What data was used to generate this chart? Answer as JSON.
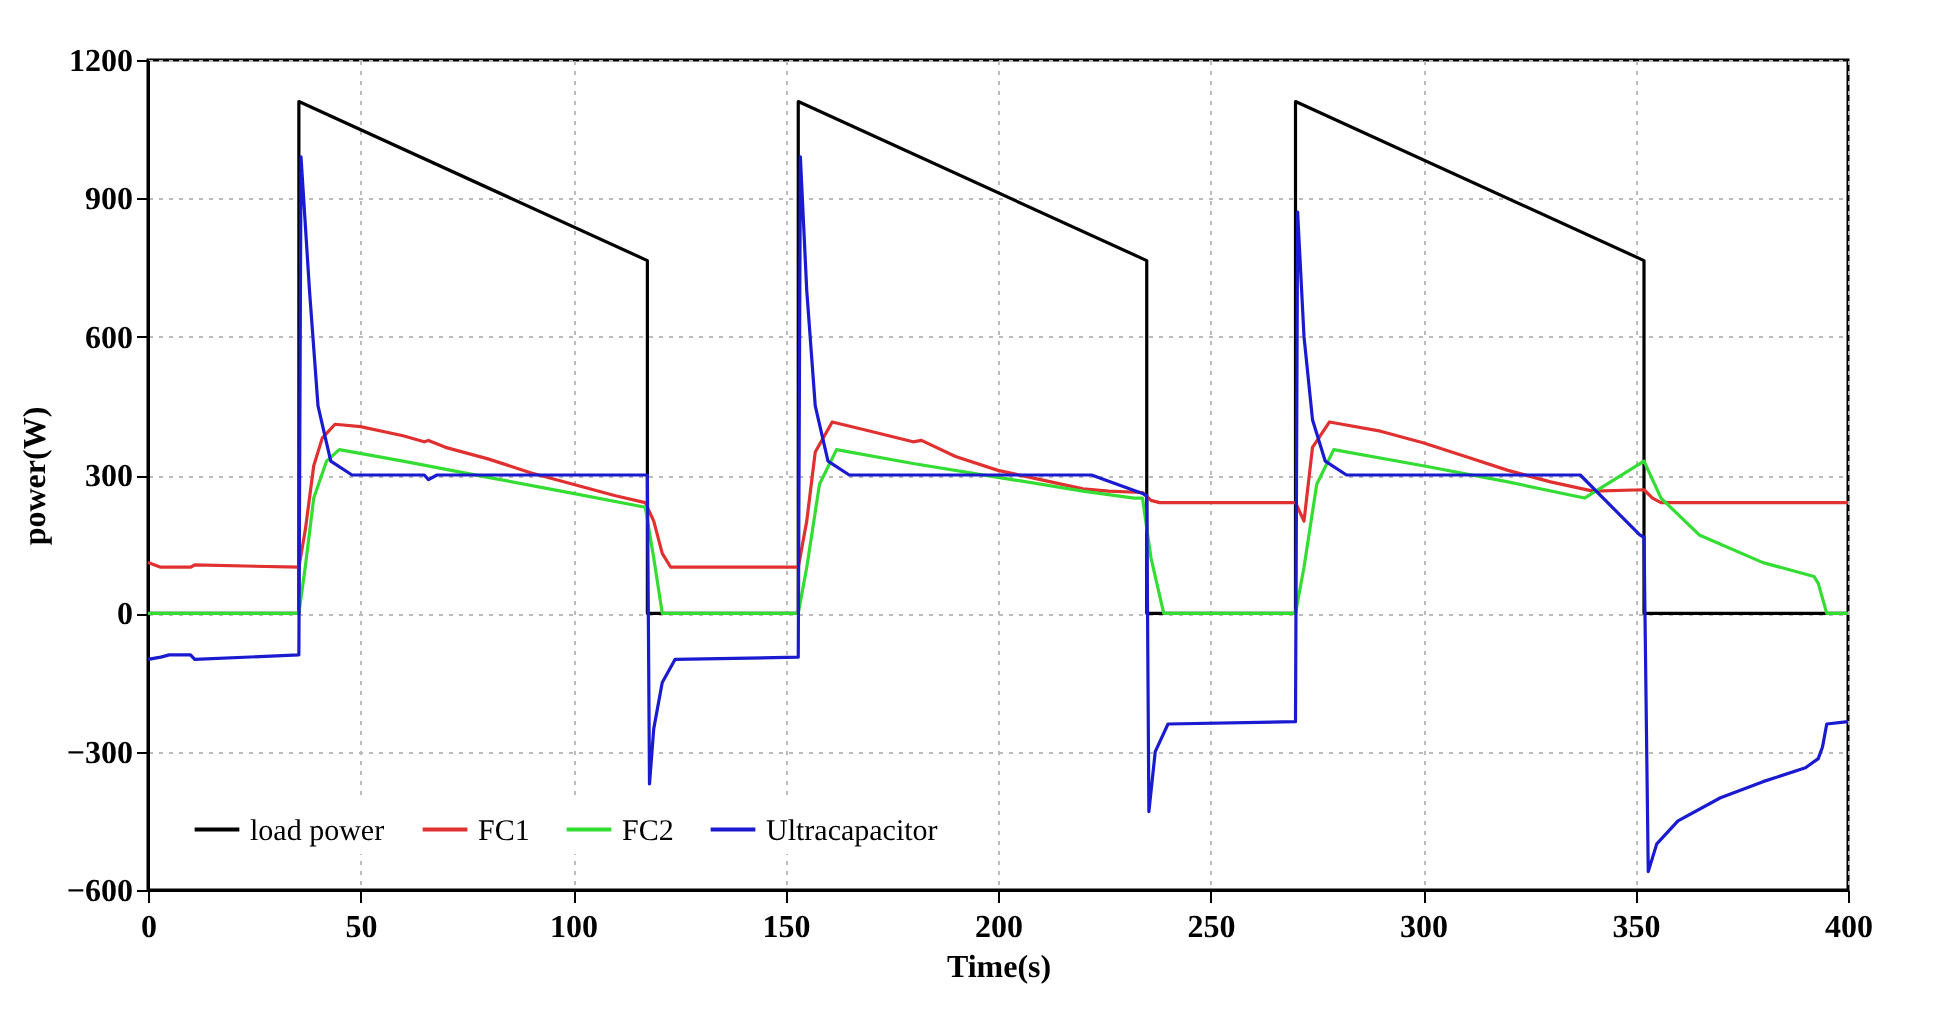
{
  "chart_data": {
    "type": "line",
    "xlabel": "Time(s)",
    "ylabel": "power(W)",
    "xlim": [
      0,
      400
    ],
    "xticks": [
      0,
      50,
      100,
      150,
      200,
      250,
      300,
      350,
      400
    ],
    "ylim": [
      -600,
      1200
    ],
    "yticks": [
      -600,
      -300,
      0,
      300,
      600,
      900,
      1200
    ],
    "grid": true,
    "legend": "bottom left",
    "marker": "none",
    "line_style": "solid",
    "series": [
      {
        "name": "load power",
        "color": "#000000",
        "x": [
          0,
          35.5,
          35.5,
          117.5,
          117.5,
          153,
          153,
          235,
          235,
          270,
          270,
          352,
          352,
          400
        ],
        "values": [
          0,
          0,
          1110,
          765,
          0,
          0,
          1110,
          765,
          0,
          0,
          1110,
          765,
          0,
          0
        ]
      },
      {
        "name": "FC1",
        "color": "#e03030",
        "x": [
          0,
          3,
          5,
          10,
          11,
          35.5,
          37,
          39,
          41,
          44,
          50,
          60,
          65,
          66,
          70,
          80,
          90,
          100,
          110,
          117,
          119,
          121,
          123,
          153,
          155,
          157,
          161,
          170,
          180,
          182,
          190,
          200,
          210,
          220,
          226,
          234,
          236,
          238,
          270,
          272,
          274,
          278,
          290,
          300,
          310,
          320,
          330,
          340,
          352,
          354,
          356,
          400
        ],
        "values": [
          110,
          100,
          100,
          100,
          105,
          100,
          180,
          320,
          380,
          410,
          405,
          385,
          372,
          375,
          360,
          335,
          305,
          280,
          255,
          240,
          200,
          130,
          100,
          100,
          200,
          350,
          415,
          395,
          372,
          375,
          340,
          310,
          290,
          270,
          265,
          262,
          245,
          240,
          240,
          200,
          360,
          415,
          395,
          370,
          340,
          310,
          285,
          265,
          268,
          250,
          240,
          240
        ]
      },
      {
        "name": "FC2",
        "color": "#33dd33",
        "x": [
          0,
          35.5,
          37,
          39,
          42,
          45,
          60,
          80,
          100,
          117,
          119,
          121,
          153,
          155,
          158,
          162,
          180,
          200,
          220,
          232,
          234,
          236,
          239,
          270,
          272,
          275,
          279,
          300,
          320,
          338,
          345,
          352,
          356,
          365,
          380,
          392,
          393,
          395,
          400
        ],
        "values": [
          0,
          0,
          100,
          250,
          330,
          355,
          330,
          295,
          260,
          230,
          120,
          0,
          0,
          100,
          280,
          355,
          325,
          295,
          265,
          250,
          250,
          120,
          0,
          0,
          100,
          280,
          355,
          320,
          285,
          250,
          290,
          330,
          250,
          170,
          110,
          80,
          65,
          0,
          0
        ]
      },
      {
        "name": "Ultracapacitor",
        "color": "#1a1ad0",
        "x": [
          0,
          3,
          5,
          10,
          11,
          35.5,
          36,
          38,
          40,
          43,
          48,
          65,
          66,
          68,
          117.5,
          118,
          119,
          121,
          124,
          153,
          153.5,
          155,
          157,
          160,
          165,
          222,
          234,
          235,
          235.5,
          237,
          240,
          270,
          270.5,
          272,
          274,
          277,
          282,
          337,
          351,
          352,
          353,
          355,
          360,
          370,
          380,
          390,
          393,
          394,
          395,
          400
        ],
        "values": [
          -100,
          -95,
          -90,
          -90,
          -100,
          -90,
          990,
          700,
          450,
          330,
          300,
          300,
          290,
          300,
          300,
          -370,
          -250,
          -150,
          -100,
          -95,
          990,
          700,
          450,
          330,
          300,
          300,
          260,
          255,
          -430,
          -300,
          -240,
          -235,
          870,
          600,
          420,
          330,
          300,
          300,
          170,
          165,
          -560,
          -500,
          -450,
          -400,
          -365,
          -335,
          -315,
          -290,
          -240,
          -235
        ]
      }
    ]
  }
}
